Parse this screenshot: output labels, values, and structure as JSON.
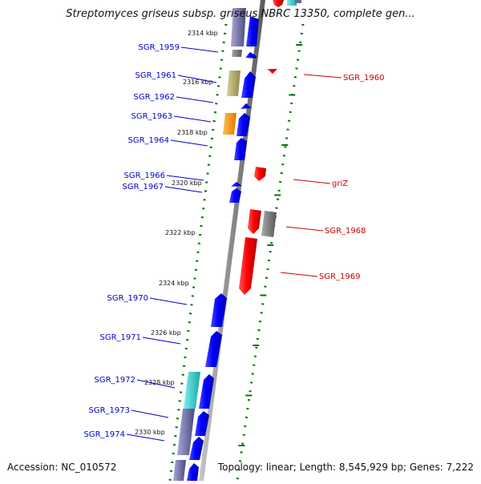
{
  "title": "Streptomyces griseus subsp. griseus NBRC 13350, complete gen...",
  "accession": "Accession: NC_010572",
  "topology": "Topology: linear; Length: 8,545,929 bp; Genes: 7,222",
  "scale_labels": [
    "2314 kbp",
    "2316 kbp",
    "2318 kbp",
    "2320 kbp",
    "2322 kbp",
    "2324 kbp",
    "2326 kbp",
    "2328 kbp",
    "2330 kbp"
  ],
  "left_genes": [
    "SGR_1959",
    "SGR_1961",
    "SGR_1962",
    "SGR_1963",
    "SGR_1964",
    "SGR_1966",
    "SGR_1967",
    "SGR_1970",
    "SGR_1971",
    "SGR_1972",
    "SGR_1973",
    "SGR_1974"
  ],
  "right_genes": [
    "SGR_1960",
    "griZ",
    "SGR_1968",
    "SGR_1969"
  ],
  "colors": {
    "forward": "#0000ff",
    "reverse": "#ff0000",
    "left_label": "#0000cc",
    "right_label": "#cc0000",
    "axis": "#909090",
    "dots": "#007700",
    "olive": "#b5ad6a",
    "orange": "#ff9900",
    "cyan": "#33cccc",
    "gray": "#777777",
    "slate": "#7a7aa8"
  }
}
